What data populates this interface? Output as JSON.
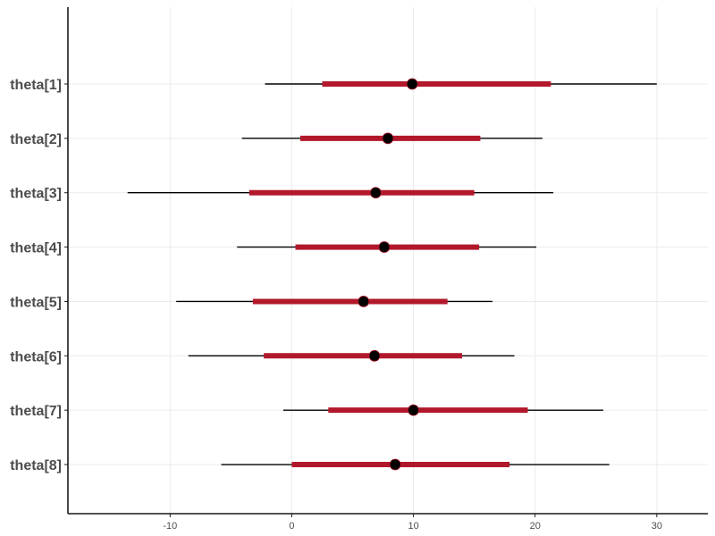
{
  "chart_data": {
    "type": "interval",
    "xlim": [
      -18.4,
      34.2
    ],
    "grid": true,
    "x_ticks": [
      -10,
      0,
      10,
      20,
      30
    ],
    "x_tick_labels": [
      "-10",
      "0",
      "10",
      "20",
      "30"
    ],
    "categories": [
      "theta[1]",
      "theta[2]",
      "theta[3]",
      "theta[4]",
      "theta[5]",
      "theta[6]",
      "theta[7]",
      "theta[8]"
    ],
    "point": [
      9.9,
      7.9,
      6.9,
      7.6,
      5.9,
      6.8,
      10.0,
      8.5
    ],
    "inner_interval": [
      [
        2.5,
        21.3
      ],
      [
        0.7,
        15.5
      ],
      [
        -3.5,
        15.0
      ],
      [
        0.3,
        15.4
      ],
      [
        -3.2,
        12.8
      ],
      [
        -2.3,
        14.0
      ],
      [
        3.0,
        19.4
      ],
      [
        0.0,
        17.9
      ]
    ],
    "outer_interval": [
      [
        -2.2,
        30.0
      ],
      [
        -4.1,
        20.6
      ],
      [
        -13.5,
        21.5
      ],
      [
        -4.5,
        20.1
      ],
      [
        -9.5,
        16.5
      ],
      [
        -8.5,
        18.3
      ],
      [
        -0.7,
        25.6
      ],
      [
        -5.8,
        26.1
      ]
    ],
    "colors": {
      "inner": "#b2182b",
      "outer": "#000000",
      "point": "#000000",
      "grid": "#ebebeb",
      "axis": "#1a1a1a",
      "text": "#4d4d4d"
    }
  }
}
